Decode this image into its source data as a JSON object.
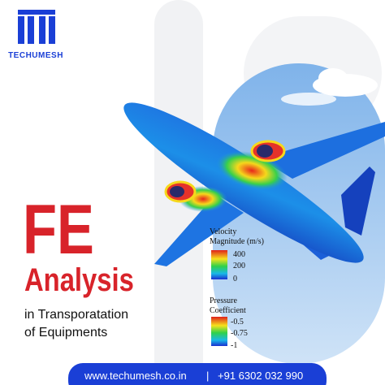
{
  "logo": {
    "text": "TECHUMESH"
  },
  "headline": {
    "line1": "FE",
    "line2": "Analysis"
  },
  "subtitle": {
    "line1": "in Transporatation",
    "line2": "of Equipments"
  },
  "legend_velocity": {
    "title_line1": "Velocity",
    "title_line2": "Magnitude (m/s)",
    "ticks": [
      "400",
      "200",
      "0"
    ]
  },
  "legend_pressure": {
    "title_line1": "Pressure",
    "title_line2": "Coefficient",
    "ticks": [
      "-0.5",
      "-0.75",
      "-1"
    ]
  },
  "footer": {
    "website": "www.techumesh.co.in",
    "separator": "|",
    "phone": "+91 6302 032 990"
  }
}
